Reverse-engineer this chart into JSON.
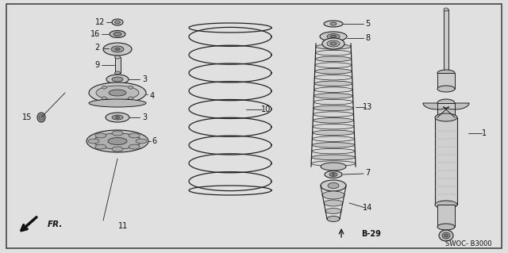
{
  "background_color": "#e0e0e0",
  "border_color": "#444444",
  "line_color": "#222222",
  "text_color": "#111111",
  "fig_width": 6.4,
  "fig_height": 3.19,
  "dpi": 100,
  "code_label": "SWOC- B3000",
  "ref_label": "B-29"
}
